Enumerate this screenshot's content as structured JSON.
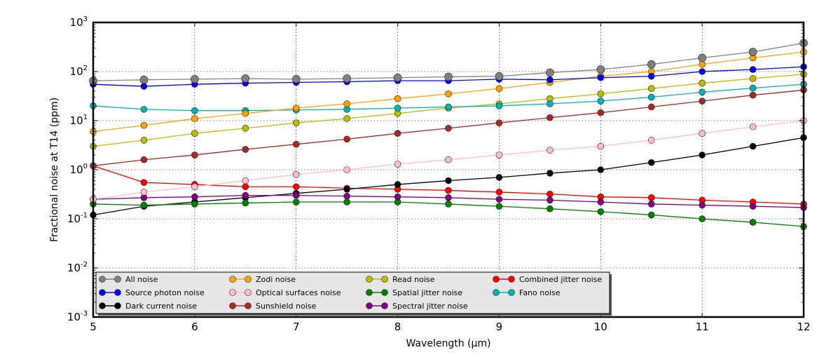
{
  "chart_data": {
    "type": "scatter",
    "title": "",
    "xlabel": "Wavelength (μm)",
    "ylabel": "Fractional noise at T14 (ppm)",
    "xlim": [
      5,
      12
    ],
    "ylim": [
      0.001,
      1000
    ],
    "yscale": "log",
    "grid": true,
    "legend_position": "lower-left",
    "x_ticks": [
      5,
      6,
      7,
      8,
      9,
      10,
      11,
      12
    ],
    "x_tick_labels": [
      "5",
      "6",
      "7",
      "8",
      "9",
      "10",
      "11",
      "12"
    ],
    "y_ticks": [
      0.001,
      0.01,
      0.1,
      1,
      10,
      100,
      1000
    ],
    "y_tick_labels": [
      {
        "base": "10",
        "exp": "-3"
      },
      {
        "base": "10",
        "exp": "-2"
      },
      {
        "base": "10",
        "exp": "-1"
      },
      {
        "base": "10",
        "exp": "0"
      },
      {
        "base": "10",
        "exp": "1"
      },
      {
        "base": "10",
        "exp": "2"
      },
      {
        "base": "10",
        "exp": "3"
      }
    ],
    "series": [
      {
        "name": "All noise",
        "color": "#808080",
        "marker_size": "large",
        "x": [
          5,
          5.5,
          6,
          6.5,
          7,
          7.5,
          8,
          8.5,
          9,
          9.5,
          10,
          10.5,
          11,
          11.5,
          12
        ],
        "y": [
          65,
          68,
          70,
          72,
          70,
          72,
          75,
          78,
          80,
          95,
          110,
          140,
          190,
          250,
          380
        ]
      },
      {
        "name": "Source photon noise",
        "color": "#0000ee",
        "marker_size": "medium",
        "x": [
          5,
          5.5,
          6,
          6.5,
          7,
          7.5,
          8,
          8.5,
          9,
          9.5,
          10,
          10.5,
          11,
          11.5,
          12
        ],
        "y": [
          55,
          50,
          55,
          58,
          60,
          62,
          65,
          65,
          70,
          68,
          75,
          80,
          100,
          110,
          125
        ]
      },
      {
        "name": "Dark current noise",
        "color": "#000000",
        "marker_size": "medium",
        "x": [
          5,
          5.5,
          6,
          6.5,
          7,
          7.5,
          8,
          8.5,
          9,
          9.5,
          10,
          10.5,
          11,
          11.5,
          12
        ],
        "y": [
          0.12,
          0.18,
          0.22,
          0.27,
          0.33,
          0.4,
          0.5,
          0.6,
          0.7,
          0.85,
          1.0,
          1.4,
          2.0,
          3.0,
          4.5
        ]
      },
      {
        "name": "Zodi noise",
        "color": "#ffa500",
        "marker_size": "medium",
        "x": [
          5,
          5.5,
          6,
          6.5,
          7,
          7.5,
          8,
          8.5,
          9,
          9.5,
          10,
          10.5,
          11,
          11.5,
          12
        ],
        "y": [
          6,
          8,
          11,
          14,
          18,
          22,
          28,
          35,
          45,
          60,
          80,
          100,
          140,
          190,
          250
        ]
      },
      {
        "name": "Optical surfaces noise",
        "color": "#ffc0cb",
        "marker_size": "medium",
        "x": [
          5,
          5.5,
          6,
          6.5,
          7,
          7.5,
          8,
          8.5,
          9,
          9.5,
          10,
          10.5,
          11,
          11.5,
          12
        ],
        "y": [
          0.25,
          0.35,
          0.45,
          0.6,
          0.8,
          1.0,
          1.3,
          1.6,
          2.0,
          2.5,
          3.0,
          4.0,
          5.5,
          7.5,
          10
        ]
      },
      {
        "name": "Sunshield noise",
        "color": "#a52a2a",
        "marker_size": "medium",
        "x": [
          5,
          5.5,
          6,
          6.5,
          7,
          7.5,
          8,
          8.5,
          9,
          9.5,
          10,
          10.5,
          11,
          11.5,
          12
        ],
        "y": [
          1.2,
          1.6,
          2.0,
          2.6,
          3.3,
          4.2,
          5.5,
          7.0,
          9.0,
          11.5,
          14.5,
          19,
          25,
          33,
          42
        ]
      },
      {
        "name": "Read noise",
        "color": "#bdbd00",
        "marker_size": "medium",
        "x": [
          5,
          5.5,
          6,
          6.5,
          7,
          7.5,
          8,
          8.5,
          9,
          9.5,
          10,
          10.5,
          11,
          11.5,
          12
        ],
        "y": [
          3.0,
          4.0,
          5.5,
          7.0,
          9.0,
          11,
          14,
          18,
          22,
          28,
          35,
          45,
          58,
          72,
          88
        ]
      },
      {
        "name": "Spatial jitter noise",
        "color": "#007f00",
        "marker_size": "medium",
        "x": [
          5,
          5.5,
          6,
          6.5,
          7,
          7.5,
          8,
          8.5,
          9,
          9.5,
          10,
          10.5,
          11,
          11.5,
          12
        ],
        "y": [
          0.2,
          0.19,
          0.2,
          0.21,
          0.22,
          0.22,
          0.22,
          0.2,
          0.18,
          0.16,
          0.14,
          0.12,
          0.1,
          0.085,
          0.07
        ]
      },
      {
        "name": "Spectral jitter noise",
        "color": "#800080",
        "marker_size": "medium",
        "x": [
          5,
          5.5,
          6,
          6.5,
          7,
          7.5,
          8,
          8.5,
          9,
          9.5,
          10,
          10.5,
          11,
          11.5,
          12
        ],
        "y": [
          0.25,
          0.27,
          0.28,
          0.3,
          0.3,
          0.29,
          0.28,
          0.27,
          0.25,
          0.24,
          0.22,
          0.2,
          0.19,
          0.18,
          0.17
        ]
      },
      {
        "name": "Combined jitter noise",
        "color": "#ff0000",
        "marker_size": "medium",
        "x": [
          5,
          5.5,
          6,
          6.5,
          7,
          7.5,
          8,
          8.5,
          9,
          9.5,
          10,
          10.5,
          11,
          11.5,
          12
        ],
        "y": [
          1.2,
          0.55,
          0.5,
          0.45,
          0.45,
          0.42,
          0.4,
          0.38,
          0.35,
          0.32,
          0.28,
          0.27,
          0.24,
          0.22,
          0.2
        ]
      },
      {
        "name": "Fano noise",
        "color": "#00b3b3",
        "marker_size": "medium",
        "x": [
          5,
          5.5,
          6,
          6.5,
          7,
          7.5,
          8,
          8.5,
          9,
          9.5,
          10,
          10.5,
          11,
          11.5,
          12
        ],
        "y": [
          20,
          17,
          16,
          16,
          16.5,
          17,
          18,
          19,
          20,
          22,
          25,
          30,
          38,
          46,
          55
        ]
      }
    ]
  }
}
